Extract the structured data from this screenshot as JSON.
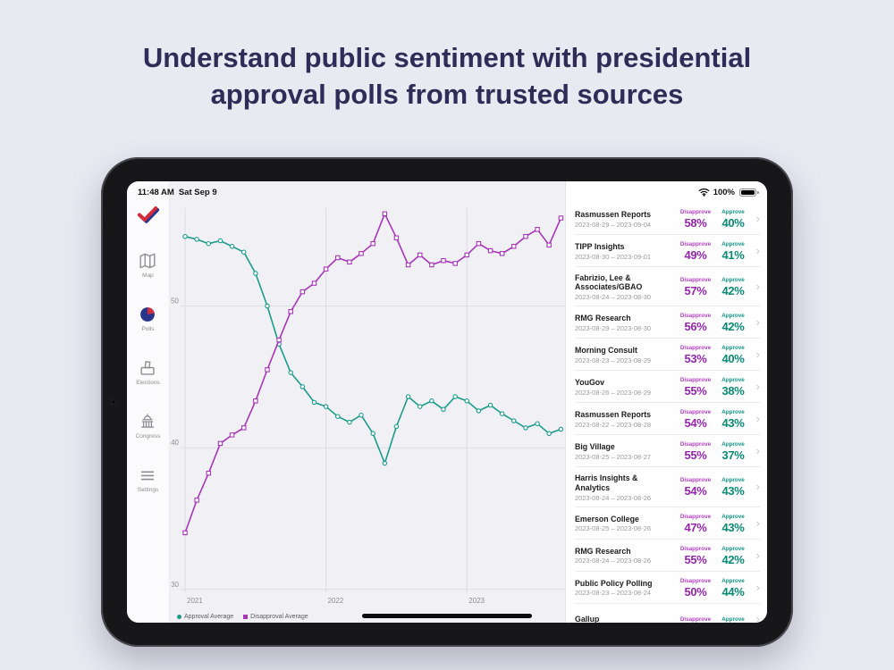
{
  "headline": "Understand public sentiment with presidential approval polls from trusted sources",
  "status_bar": {
    "time": "11:48 AM",
    "date": "Sat Sep 9",
    "battery": "100%"
  },
  "sidebar": {
    "items": [
      {
        "id": "map",
        "label": "Map",
        "icon": "map-icon",
        "selected": false
      },
      {
        "id": "polls",
        "label": "Polls",
        "icon": "pie-chart-icon",
        "selected": true
      },
      {
        "id": "elections",
        "label": "Elections",
        "icon": "ballot-box-icon",
        "selected": false
      },
      {
        "id": "congress",
        "label": "Congress",
        "icon": "capitol-icon",
        "selected": false
      },
      {
        "id": "settings",
        "label": "Settings",
        "icon": "menu-lines-icon",
        "selected": false
      }
    ]
  },
  "chart_data": {
    "type": "line",
    "title": "Presidential approval vs disapproval average",
    "x": [
      2021.0,
      2021.083,
      2021.167,
      2021.25,
      2021.333,
      2021.417,
      2021.5,
      2021.583,
      2021.667,
      2021.75,
      2021.833,
      2021.917,
      2022.0,
      2022.083,
      2022.167,
      2022.25,
      2022.333,
      2022.417,
      2022.5,
      2022.583,
      2022.667,
      2022.75,
      2022.833,
      2022.917,
      2023.0,
      2023.083,
      2023.167,
      2023.25,
      2023.333,
      2023.417,
      2023.5,
      2023.583,
      2023.667
    ],
    "series": [
      {
        "name": "Approval Average",
        "color": "#1a9b8a",
        "marker": "circle",
        "values": [
          54.9,
          54.7,
          54.4,
          54.6,
          54.2,
          53.8,
          52.3,
          50.0,
          47.3,
          45.3,
          44.3,
          43.2,
          42.9,
          42.2,
          41.8,
          42.3,
          41.0,
          38.9,
          41.5,
          43.6,
          42.9,
          43.3,
          42.7,
          43.6,
          43.3,
          42.6,
          43.0,
          42.4,
          41.9,
          41.4,
          41.7,
          41.0,
          41.3
        ]
      },
      {
        "name": "Disapproval Average",
        "color": "#a735b8",
        "marker": "square",
        "values": [
          34.0,
          36.3,
          38.2,
          40.3,
          40.9,
          41.4,
          43.3,
          45.5,
          47.6,
          49.6,
          51.0,
          51.6,
          52.6,
          53.4,
          53.1,
          53.7,
          54.4,
          56.5,
          54.8,
          52.9,
          53.6,
          52.9,
          53.2,
          53.0,
          53.6,
          54.4,
          53.9,
          53.7,
          54.2,
          54.9,
          55.4,
          54.3,
          56.2
        ]
      }
    ],
    "x_ticks": [
      2021,
      2022,
      2023
    ],
    "y_ticks": [
      30,
      40,
      50
    ],
    "xlim": [
      2020.968,
      2023.696
    ],
    "ylim": [
      29.8,
      56.9
    ],
    "grid": true,
    "legend_position": "bottom-left"
  },
  "polls": {
    "disapprove_label": "Disapprove",
    "approve_label": "Approve",
    "rows": [
      {
        "name": "Rasmussen Reports",
        "dates": "2023-08-29 – 2023-09-04",
        "disapprove": "58%",
        "approve": "40%"
      },
      {
        "name": "TIPP Insights",
        "dates": "2023-08-30 – 2023-09-01",
        "disapprove": "49%",
        "approve": "41%"
      },
      {
        "name": "Fabrizio, Lee & Associates/GBAO",
        "dates": "2023-08-24 – 2023-08-30",
        "disapprove": "57%",
        "approve": "42%"
      },
      {
        "name": "RMG Research",
        "dates": "2023-08-29 – 2023-08-30",
        "disapprove": "56%",
        "approve": "42%"
      },
      {
        "name": "Morning Consult",
        "dates": "2023-08-23 – 2023-08-29",
        "disapprove": "53%",
        "approve": "40%"
      },
      {
        "name": "YouGov",
        "dates": "2023-08-26 – 2023-08-29",
        "disapprove": "55%",
        "approve": "38%"
      },
      {
        "name": "Rasmussen Reports",
        "dates": "2023-08-22 – 2023-08-28",
        "disapprove": "54%",
        "approve": "43%"
      },
      {
        "name": "Big Village",
        "dates": "2023-08-25 – 2023-08-27",
        "disapprove": "55%",
        "approve": "37%"
      },
      {
        "name": "Harris Insights & Analytics",
        "dates": "2023-08-24 – 2023-08-26",
        "disapprove": "54%",
        "approve": "43%"
      },
      {
        "name": "Emerson College",
        "dates": "2023-08-25 – 2023-08-26",
        "disapprove": "47%",
        "approve": "43%"
      },
      {
        "name": "RMG Research",
        "dates": "2023-08-24 – 2023-08-26",
        "disapprove": "55%",
        "approve": "42%"
      },
      {
        "name": "Public Policy Polling",
        "dates": "2023-08-23 – 2023-08-24",
        "disapprove": "50%",
        "approve": "44%"
      },
      {
        "name": "Gallup",
        "dates": "",
        "disapprove": "",
        "approve": ""
      }
    ]
  },
  "colors": {
    "approve": "#0a8a74",
    "disapprove": "#9327a8",
    "approval_line": "#1a9b8a",
    "disapproval_line": "#a735b8",
    "accent_red": "#d22d3a",
    "accent_blue": "#27348b",
    "headline": "#312b57",
    "background": "#e9e9f2"
  }
}
